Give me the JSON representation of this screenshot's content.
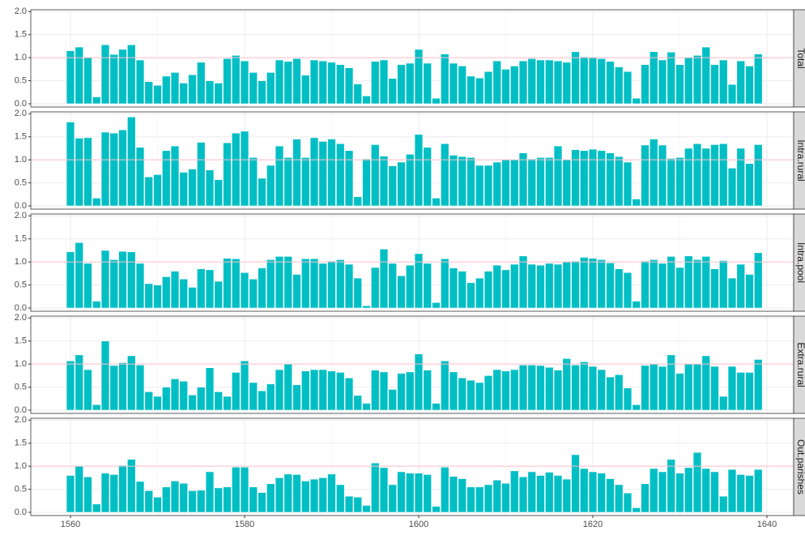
{
  "chart_data": [
    {
      "type": "bar",
      "facet": "Total",
      "color": "#00bfc4",
      "hline": 1,
      "hline_color": "#ffc0cb",
      "grid": true,
      "x": [
        1560,
        1561,
        1562,
        1563,
        1564,
        1565,
        1566,
        1567,
        1568,
        1569,
        1570,
        1571,
        1572,
        1573,
        1574,
        1575,
        1576,
        1577,
        1578,
        1579,
        1580,
        1581,
        1582,
        1583,
        1584,
        1585,
        1586,
        1587,
        1588,
        1589,
        1590,
        1591,
        1592,
        1593,
        1594,
        1595,
        1596,
        1597,
        1598,
        1599,
        1600,
        1601,
        1602,
        1603,
        1604,
        1605,
        1606,
        1607,
        1608,
        1609,
        1610,
        1611,
        1612,
        1613,
        1614,
        1615,
        1616,
        1617,
        1618,
        1619,
        1620,
        1621,
        1622,
        1623,
        1624,
        1625,
        1626,
        1627,
        1628,
        1629,
        1630,
        1631,
        1632,
        1633,
        1634,
        1635,
        1636,
        1637,
        1638,
        1639
      ],
      "values": [
        1.15,
        1.23,
        1.0,
        0.15,
        1.28,
        1.07,
        1.18,
        1.28,
        0.95,
        0.48,
        0.4,
        0.6,
        0.68,
        0.45,
        0.63,
        0.9,
        0.5,
        0.45,
        0.98,
        1.05,
        0.93,
        0.68,
        0.5,
        0.68,
        0.95,
        0.92,
        0.98,
        0.62,
        0.95,
        0.93,
        0.9,
        0.85,
        0.78,
        0.43,
        0.17,
        0.92,
        0.95,
        0.55,
        0.85,
        0.88,
        1.18,
        0.88,
        0.12,
        1.08,
        0.88,
        0.82,
        0.6,
        0.56,
        0.7,
        0.93,
        0.75,
        0.82,
        0.93,
        0.98,
        0.95,
        0.95,
        0.93,
        0.9,
        1.13,
        1.02,
        1.0,
        0.98,
        0.92,
        0.8,
        0.7,
        0.12,
        0.85,
        1.13,
        0.95,
        1.12,
        0.85,
        1.0,
        1.05,
        1.23,
        0.85,
        0.95,
        0.42,
        0.93,
        0.82,
        1.08
      ],
      "xlim": [
        1555.44,
        1643.07
      ],
      "ylim": [
        -0.07,
        2.04
      ],
      "yticks": [
        {
          "value": 0,
          "label": "0.0"
        },
        0.5,
        {
          "value": 1,
          "label": "1.0"
        },
        1.5,
        {
          "value": 2,
          "label": "2.0"
        }
      ]
    },
    {
      "type": "bar",
      "facet": "Intra.rural",
      "color": "#00bfc4",
      "hline": 1,
      "hline_color": "#ffc0cb",
      "grid": true,
      "x": [
        1560,
        1561,
        1562,
        1563,
        1564,
        1565,
        1566,
        1567,
        1568,
        1569,
        1570,
        1571,
        1572,
        1573,
        1574,
        1575,
        1576,
        1577,
        1578,
        1579,
        1580,
        1581,
        1582,
        1583,
        1584,
        1585,
        1586,
        1587,
        1588,
        1589,
        1590,
        1591,
        1592,
        1593,
        1594,
        1595,
        1596,
        1597,
        1598,
        1599,
        1600,
        1601,
        1602,
        1603,
        1604,
        1605,
        1606,
        1607,
        1608,
        1609,
        1610,
        1611,
        1612,
        1613,
        1614,
        1615,
        1616,
        1617,
        1618,
        1619,
        1620,
        1621,
        1622,
        1623,
        1624,
        1625,
        1626,
        1627,
        1628,
        1629,
        1630,
        1631,
        1632,
        1633,
        1634,
        1635,
        1636,
        1637,
        1638,
        1639
      ],
      "values": [
        1.82,
        1.47,
        1.48,
        0.17,
        1.6,
        1.58,
        1.65,
        1.93,
        1.27,
        0.63,
        0.68,
        1.2,
        1.3,
        0.73,
        0.8,
        1.38,
        0.78,
        0.57,
        1.37,
        1.58,
        1.62,
        1.05,
        0.6,
        0.88,
        1.3,
        1.05,
        1.45,
        1.05,
        1.48,
        1.4,
        1.45,
        1.35,
        1.2,
        0.2,
        1.02,
        1.33,
        1.08,
        0.87,
        0.95,
        1.12,
        1.55,
        1.27,
        0.17,
        1.35,
        1.1,
        1.07,
        1.05,
        0.88,
        0.88,
        0.95,
        1.0,
        1.0,
        1.15,
        1.02,
        1.05,
        1.05,
        1.3,
        1.0,
        1.22,
        1.2,
        1.23,
        1.2,
        1.15,
        1.07,
        0.95,
        0.15,
        1.32,
        1.45,
        1.32,
        1.03,
        1.05,
        1.25,
        1.35,
        1.25,
        1.33,
        1.35,
        0.82,
        1.25,
        0.92,
        1.33
      ],
      "xlim": [
        1555.44,
        1643.07
      ],
      "ylim": [
        -0.07,
        2.04
      ],
      "yticks": [
        {
          "value": 0,
          "label": "0.0"
        },
        0.5,
        {
          "value": 1,
          "label": "1.0"
        },
        1.5,
        {
          "value": 2,
          "label": "2.0"
        }
      ]
    },
    {
      "type": "bar",
      "facet": "Intra.pool",
      "color": "#00bfc4",
      "hline": 1,
      "hline_color": "#ffc0cb",
      "grid": true,
      "x": [
        1560,
        1561,
        1562,
        1563,
        1564,
        1565,
        1566,
        1567,
        1568,
        1569,
        1570,
        1571,
        1572,
        1573,
        1574,
        1575,
        1576,
        1577,
        1578,
        1579,
        1580,
        1581,
        1582,
        1583,
        1584,
        1585,
        1586,
        1587,
        1588,
        1589,
        1590,
        1591,
        1592,
        1593,
        1594,
        1595,
        1596,
        1597,
        1598,
        1599,
        1600,
        1601,
        1602,
        1603,
        1604,
        1605,
        1606,
        1607,
        1608,
        1609,
        1610,
        1611,
        1612,
        1613,
        1614,
        1615,
        1616,
        1617,
        1618,
        1619,
        1620,
        1621,
        1622,
        1623,
        1624,
        1625,
        1626,
        1627,
        1628,
        1629,
        1630,
        1631,
        1632,
        1633,
        1634,
        1635,
        1636,
        1637,
        1638,
        1639
      ],
      "values": [
        1.22,
        1.42,
        0.97,
        0.15,
        1.25,
        1.05,
        1.23,
        1.22,
        0.97,
        0.53,
        0.5,
        0.68,
        0.8,
        0.63,
        0.45,
        0.85,
        0.83,
        0.58,
        1.08,
        1.07,
        0.77,
        0.63,
        0.87,
        1.05,
        1.12,
        1.12,
        0.73,
        1.07,
        1.07,
        0.97,
        1.02,
        1.05,
        0.95,
        0.65,
        0.05,
        0.88,
        1.28,
        0.97,
        0.7,
        0.93,
        1.18,
        0.97,
        0.12,
        1.07,
        0.87,
        0.8,
        0.55,
        0.65,
        0.8,
        0.93,
        0.83,
        0.95,
        1.13,
        0.95,
        0.93,
        0.97,
        0.95,
        1.0,
        1.02,
        1.1,
        1.08,
        1.05,
        0.98,
        0.85,
        0.77,
        0.15,
        1.02,
        1.05,
        0.97,
        1.12,
        0.88,
        1.13,
        1.05,
        1.12,
        0.85,
        1.03,
        0.65,
        0.95,
        0.73,
        1.2
      ],
      "xlim": [
        1555.44,
        1643.07
      ],
      "ylim": [
        -0.07,
        2.04
      ],
      "yticks": [
        {
          "value": 0,
          "label": "0.0"
        },
        0.5,
        {
          "value": 1,
          "label": "1.0"
        },
        1.5,
        {
          "value": 2,
          "label": "2.0"
        }
      ]
    },
    {
      "type": "bar",
      "facet": "Extra.rural",
      "color": "#00bfc4",
      "hline": 1,
      "hline_color": "#ffc0cb",
      "grid": true,
      "x": [
        1560,
        1561,
        1562,
        1563,
        1564,
        1565,
        1566,
        1567,
        1568,
        1569,
        1570,
        1571,
        1572,
        1573,
        1574,
        1575,
        1576,
        1577,
        1578,
        1579,
        1580,
        1581,
        1582,
        1583,
        1584,
        1585,
        1586,
        1587,
        1588,
        1589,
        1590,
        1591,
        1592,
        1593,
        1594,
        1595,
        1596,
        1597,
        1598,
        1599,
        1600,
        1601,
        1602,
        1603,
        1604,
        1605,
        1606,
        1607,
        1608,
        1609,
        1610,
        1611,
        1612,
        1613,
        1614,
        1615,
        1616,
        1617,
        1618,
        1619,
        1620,
        1621,
        1622,
        1623,
        1624,
        1625,
        1626,
        1627,
        1628,
        1629,
        1630,
        1631,
        1632,
        1633,
        1634,
        1635,
        1636,
        1637,
        1638,
        1639
      ],
      "values": [
        1.07,
        1.2,
        0.88,
        0.12,
        1.5,
        0.97,
        1.03,
        1.18,
        0.98,
        0.4,
        0.3,
        0.5,
        0.68,
        0.63,
        0.33,
        0.5,
        0.92,
        0.4,
        0.3,
        0.82,
        1.07,
        0.6,
        0.42,
        0.57,
        0.88,
        1.0,
        0.55,
        0.85,
        0.88,
        0.88,
        0.85,
        0.82,
        0.7,
        0.32,
        0.15,
        0.87,
        0.83,
        0.45,
        0.8,
        0.83,
        1.22,
        0.87,
        0.15,
        1.07,
        0.83,
        0.7,
        0.65,
        0.6,
        0.75,
        0.88,
        0.85,
        0.88,
        0.98,
        0.98,
        0.97,
        0.93,
        0.87,
        1.12,
        0.98,
        1.05,
        0.95,
        0.88,
        0.72,
        0.77,
        0.48,
        0.12,
        0.97,
        1.0,
        0.95,
        1.2,
        0.8,
        1.0,
        1.0,
        1.18,
        0.95,
        0.3,
        0.95,
        0.82,
        0.82,
        1.1
      ],
      "xlim": [
        1555.44,
        1643.07
      ],
      "ylim": [
        -0.07,
        2.04
      ],
      "yticks": [
        {
          "value": 0,
          "label": "0.0"
        },
        0.5,
        {
          "value": 1,
          "label": "1.0"
        },
        1.5,
        {
          "value": 2,
          "label": "2.0"
        }
      ]
    },
    {
      "type": "bar",
      "facet": "Out.parishes",
      "color": "#00bfc4",
      "hline": 1,
      "hline_color": "#ffc0cb",
      "grid": true,
      "x": [
        1560,
        1561,
        1562,
        1563,
        1564,
        1565,
        1566,
        1567,
        1568,
        1569,
        1570,
        1571,
        1572,
        1573,
        1574,
        1575,
        1576,
        1577,
        1578,
        1579,
        1580,
        1581,
        1582,
        1583,
        1584,
        1585,
        1586,
        1587,
        1588,
        1589,
        1590,
        1591,
        1592,
        1593,
        1594,
        1595,
        1596,
        1597,
        1598,
        1599,
        1600,
        1601,
        1602,
        1603,
        1604,
        1605,
        1606,
        1607,
        1608,
        1609,
        1610,
        1611,
        1612,
        1613,
        1614,
        1615,
        1616,
        1617,
        1618,
        1619,
        1620,
        1621,
        1622,
        1623,
        1624,
        1625,
        1626,
        1627,
        1628,
        1629,
        1630,
        1631,
        1632,
        1633,
        1634,
        1635,
        1636,
        1637,
        1638,
        1639
      ],
      "values": [
        0.8,
        1.0,
        0.77,
        0.18,
        0.85,
        0.82,
        1.02,
        1.15,
        0.67,
        0.47,
        0.33,
        0.55,
        0.68,
        0.63,
        0.47,
        0.48,
        0.88,
        0.53,
        0.55,
        0.98,
        0.98,
        0.55,
        0.43,
        0.62,
        0.75,
        0.83,
        0.82,
        0.68,
        0.72,
        0.75,
        0.83,
        0.6,
        0.35,
        0.33,
        0.15,
        1.07,
        0.97,
        0.6,
        0.88,
        0.85,
        0.85,
        0.82,
        0.13,
        0.98,
        0.78,
        0.73,
        0.55,
        0.55,
        0.6,
        0.7,
        0.63,
        0.9,
        0.77,
        0.88,
        0.8,
        0.87,
        0.8,
        0.72,
        1.25,
        0.95,
        0.88,
        0.85,
        0.73,
        0.6,
        0.42,
        0.1,
        0.62,
        0.95,
        0.88,
        1.15,
        0.85,
        0.97,
        1.3,
        0.95,
        0.88,
        0.35,
        0.93,
        0.82,
        0.8,
        0.93
      ],
      "xlim": [
        1555.44,
        1643.07
      ],
      "ylim": [
        -0.07,
        2.04
      ],
      "yticks": [
        {
          "value": 0,
          "label": "0.0"
        },
        0.5,
        {
          "value": 1,
          "label": "1.0"
        },
        1.5,
        {
          "value": 2,
          "label": "2.0"
        }
      ],
      "xticks": [
        1560,
        1580,
        1600,
        1620,
        1640
      ]
    }
  ]
}
